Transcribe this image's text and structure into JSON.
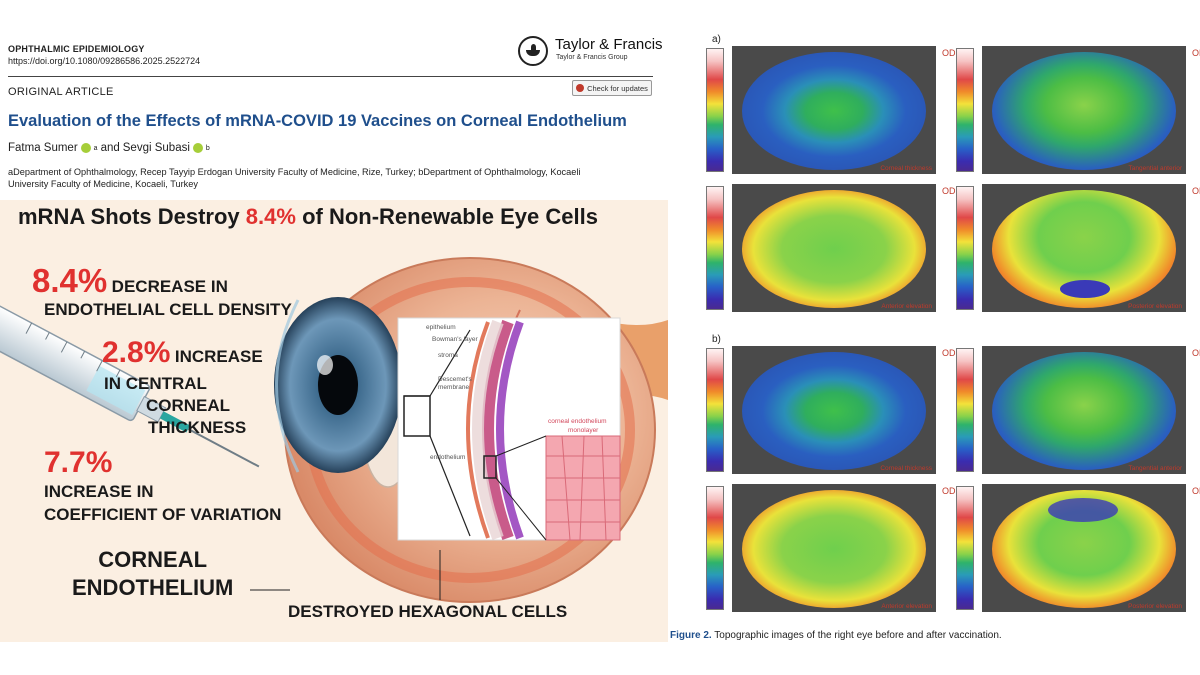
{
  "paper": {
    "journal": "OPHTHALMIC EPIDEMIOLOGY",
    "doi": "https://doi.org/10.1080/09286586.2025.2522724",
    "publisher_name": "Taylor & Francis",
    "publisher_group": "Taylor & Francis Group",
    "article_type": "ORIGINAL ARTICLE",
    "check_updates_label": "Check for updates",
    "title": "Evaluation of the Effects of mRNA-COVID 19 Vaccines on Corneal Endothelium",
    "author1": "Fatma Sumer",
    "author1_sup": "a",
    "author_join": "and",
    "author2": "Sevgi Subasi",
    "author2_sup": "b",
    "affiliation_line1": "aDepartment of Ophthalmology, Recep Tayyip Erdogan University Faculty of Medicine, Rize, Turkey; bDepartment of Ophthalmology, Kocaeli",
    "affiliation_line2": "University Faculty of Medicine, Kocaeli, Turkey"
  },
  "infographic": {
    "headline_prefix": "mRNA Shots Destroy",
    "headline_accent": "8.4%",
    "headline_suffix": "of Non-Renewable Eye Cells",
    "stat1_value": "8.4%",
    "stat1_label_a": "DECREASE IN",
    "stat1_label_b": "ENDOTHELIAL CELL DENSITY",
    "stat2_value": "2.8%",
    "stat2_label_a": "INCREASE",
    "stat2_label_b": "IN CENTRAL",
    "stat2_label_c": "CORNEAL",
    "stat2_label_d": "THICKNESS",
    "stat3_value": "7.7%",
    "stat3_label_a": "INCREASE IN",
    "stat3_label_b": "COEFFICIENT OF VARIATION",
    "cornea_label_a": "CORNEAL",
    "cornea_label_b": "ENDOTHELIUM",
    "destroyed_label": "DESTROYED HEXAGONAL CELLS",
    "inset_labels": {
      "epithelium": "epithelium",
      "bowman": "Bowman's layer",
      "stroma": "stroma",
      "descemet_a": "Descemet's",
      "descemet_b": "membrane",
      "endothelium": "endothelium",
      "monolayer_a": "corneal endothelium",
      "monolayer_b": "monolayer"
    }
  },
  "figure": {
    "panel_a": "a)",
    "panel_b": "b)",
    "od_label": "OD",
    "map_captions": {
      "corneal_thickness": "Corneal thickness",
      "tangential_anterior": "Tangential anterior",
      "anterior_elevation": "Anterior elevation",
      "posterior_elevation": "Posterior elevation"
    },
    "caption_label": "Figure 2.",
    "caption_text": "Topographic images of the right eye before and after vaccination."
  },
  "colors": {
    "title_blue": "#1f4f8c",
    "stat_red": "#e0312f",
    "od_red": "#c0392b",
    "infographic_bg": "#fbefe2"
  }
}
